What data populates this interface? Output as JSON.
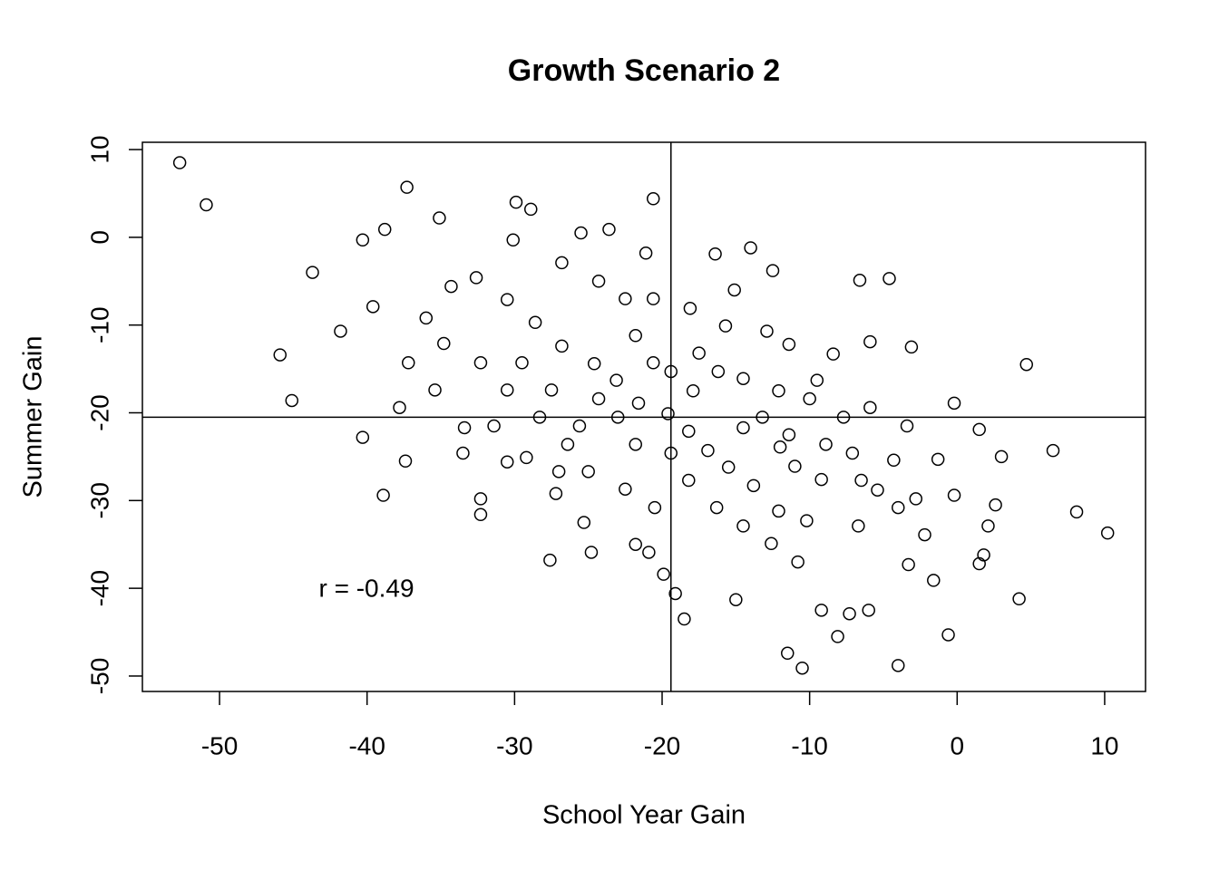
{
  "chart_data": {
    "type": "scatter",
    "title": "Growth Scenario 2",
    "x_label": "School Year Gain",
    "y_label": "Summer Gain",
    "annotation": "r = -0.49",
    "xlim": [
      -55.23,
      12.77
    ],
    "ylim": [
      -51.76,
      10.83
    ],
    "xticks": [
      -50,
      -40,
      -30,
      -20,
      -10,
      0,
      10
    ],
    "yticks": [
      -50,
      -40,
      -30,
      -20,
      -10,
      0,
      10
    ],
    "reference_lines": {
      "x": -19.4,
      "y": -20.5
    },
    "color": "#000000",
    "x": [
      -52.7,
      -50.9,
      10.2,
      8.1,
      6.5,
      4.7,
      4.2,
      -20.6,
      -37.3,
      -45.9,
      -45.1,
      -43.7,
      -10.5,
      -11.5,
      -4.0,
      -0.6,
      -38.9,
      -27.6,
      -19.1,
      -18.5,
      -29.9,
      -28.9,
      -35.1,
      -40.3,
      -38.8,
      -14.0,
      -16.4,
      -21.1,
      -6.6,
      -4.6,
      -0.2,
      -1.3,
      3.0,
      1.5,
      2.6,
      -0.2,
      1.5,
      -3.3,
      -7.3,
      -9.2,
      -8.1,
      -6.0,
      -15.0,
      -12.9,
      -12.5,
      -25.5,
      -23.6,
      -32.3,
      -32.3,
      -33.4,
      -40.3,
      -37.4,
      -41.8,
      -39.6,
      -24.8,
      -25.3,
      -21.8,
      -20.9,
      -19.9,
      -12.1,
      -10.2,
      -9.2,
      -6.7,
      -5.4,
      -4.3,
      -3.4,
      -3.1,
      -5.9,
      -8.4,
      -10.0,
      -12.1,
      -14.5,
      -16.2,
      -17.9,
      -19.6,
      -18.2,
      -16.9,
      -15.5,
      -13.8,
      -11.0,
      -12.0,
      -14.5,
      -21.6,
      -23.1,
      -24.6,
      -26.8,
      -28.6,
      -30.5,
      -32.6,
      -34.3,
      -36.0,
      -34.8,
      -32.3,
      -30.5,
      -28.3,
      -26.4,
      -25.0,
      -22.5,
      -20.5,
      -23.0,
      -25.6,
      -27.5,
      -29.5,
      -31.4,
      -29.2,
      -27.2,
      -37.2,
      -37.8,
      -35.4,
      -21.8,
      -20.6,
      -18.1,
      -15.7,
      -15.1,
      -11.4,
      -9.5,
      -7.7,
      -5.9,
      -7.1,
      -4.0,
      -2.2,
      -1.6,
      -10.8,
      -12.6,
      -14.5,
      -16.3,
      -18.2,
      -19.4,
      -21.8,
      -24.3,
      -17.5,
      -19.4,
      -20.6,
      -13.2,
      -11.4,
      -8.9,
      -6.5,
      -2.8,
      2.1,
      1.8,
      -30.1,
      -26.8,
      -24.3,
      -22.5,
      -27.0,
      -30.5,
      -33.5
    ],
    "values": [
      8.5,
      3.7,
      -33.7,
      -31.3,
      -24.3,
      -14.5,
      -41.2,
      4.4,
      5.7,
      -13.4,
      -18.6,
      -4.0,
      -49.1,
      -47.4,
      -48.8,
      -45.3,
      -29.4,
      -36.8,
      -40.6,
      -43.5,
      4.0,
      3.2,
      2.2,
      -0.3,
      0.9,
      -1.2,
      -1.9,
      -1.8,
      -4.9,
      -4.7,
      -18.9,
      -25.3,
      -25.0,
      -21.9,
      -30.5,
      -29.4,
      -37.2,
      -37.3,
      -42.9,
      -42.5,
      -45.5,
      -42.5,
      -41.3,
      -10.7,
      -3.8,
      0.5,
      0.9,
      -29.8,
      -31.6,
      -21.7,
      -22.8,
      -25.5,
      -10.7,
      -7.9,
      -35.9,
      -32.5,
      -35.0,
      -35.9,
      -38.4,
      -31.2,
      -32.3,
      -27.6,
      -32.9,
      -28.8,
      -25.4,
      -21.5,
      -12.5,
      -11.9,
      -13.3,
      -18.4,
      -17.5,
      -16.1,
      -15.3,
      -17.5,
      -20.1,
      -22.1,
      -24.3,
      -26.2,
      -28.3,
      -26.1,
      -23.9,
      -21.7,
      -18.9,
      -16.3,
      -14.4,
      -12.4,
      -9.7,
      -7.1,
      -4.6,
      -5.6,
      -9.2,
      -12.1,
      -14.3,
      -17.4,
      -20.5,
      -23.6,
      -26.7,
      -28.7,
      -30.8,
      -20.5,
      -21.5,
      -17.4,
      -14.3,
      -21.5,
      -25.1,
      -29.2,
      -14.3,
      -19.4,
      -17.4,
      -11.2,
      -7.0,
      -8.1,
      -10.1,
      -6.0,
      -12.2,
      -16.3,
      -20.5,
      -19.4,
      -24.6,
      -30.8,
      -33.9,
      -39.1,
      -37.0,
      -34.9,
      -32.9,
      -30.8,
      -27.7,
      -24.6,
      -23.6,
      -18.4,
      -13.2,
      -15.3,
      -14.3,
      -20.5,
      -22.5,
      -23.6,
      -27.7,
      -29.8,
      -32.9,
      -36.2,
      -0.3,
      -2.9,
      -5.0,
      -7.0,
      -26.7,
      -25.6,
      -24.6
    ]
  }
}
